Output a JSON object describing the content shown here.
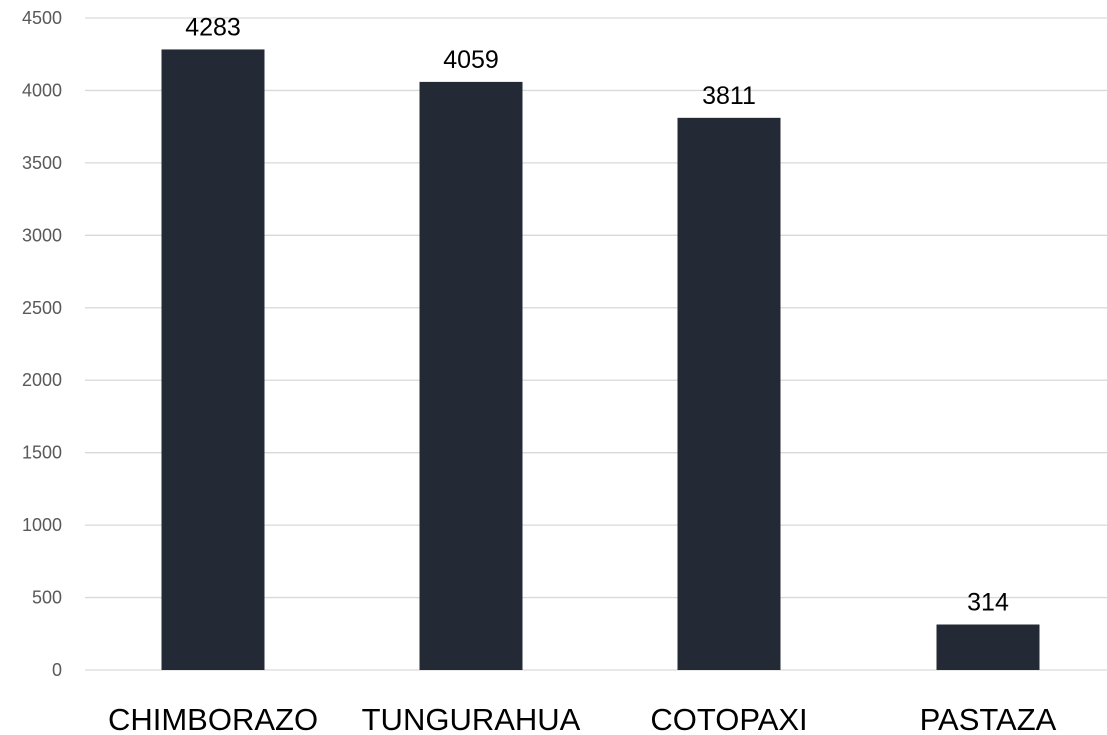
{
  "chart_data": {
    "type": "bar",
    "categories": [
      "CHIMBORAZO",
      "TUNGURAHUA",
      "COTOPAXI",
      "PASTAZA"
    ],
    "values": [
      4283,
      4059,
      3811,
      314
    ],
    "data_labels": [
      "4283",
      "4059",
      "3811",
      "314"
    ],
    "title": "",
    "xlabel": "",
    "ylabel": "",
    "ylim": [
      0,
      4500
    ],
    "yticks": [
      0,
      500,
      1000,
      1500,
      2000,
      2500,
      3000,
      3500,
      4000,
      4500
    ],
    "ytick_labels": [
      "0",
      "500",
      "1000",
      "1500",
      "2000",
      "2500",
      "3000",
      "3500",
      "4000",
      "4500"
    ],
    "grid": true,
    "legend": "none",
    "colors": {
      "bar": "#232a35",
      "grid": "#d9d9d9",
      "tick_text": "#595959",
      "label_text": "#000000"
    }
  }
}
